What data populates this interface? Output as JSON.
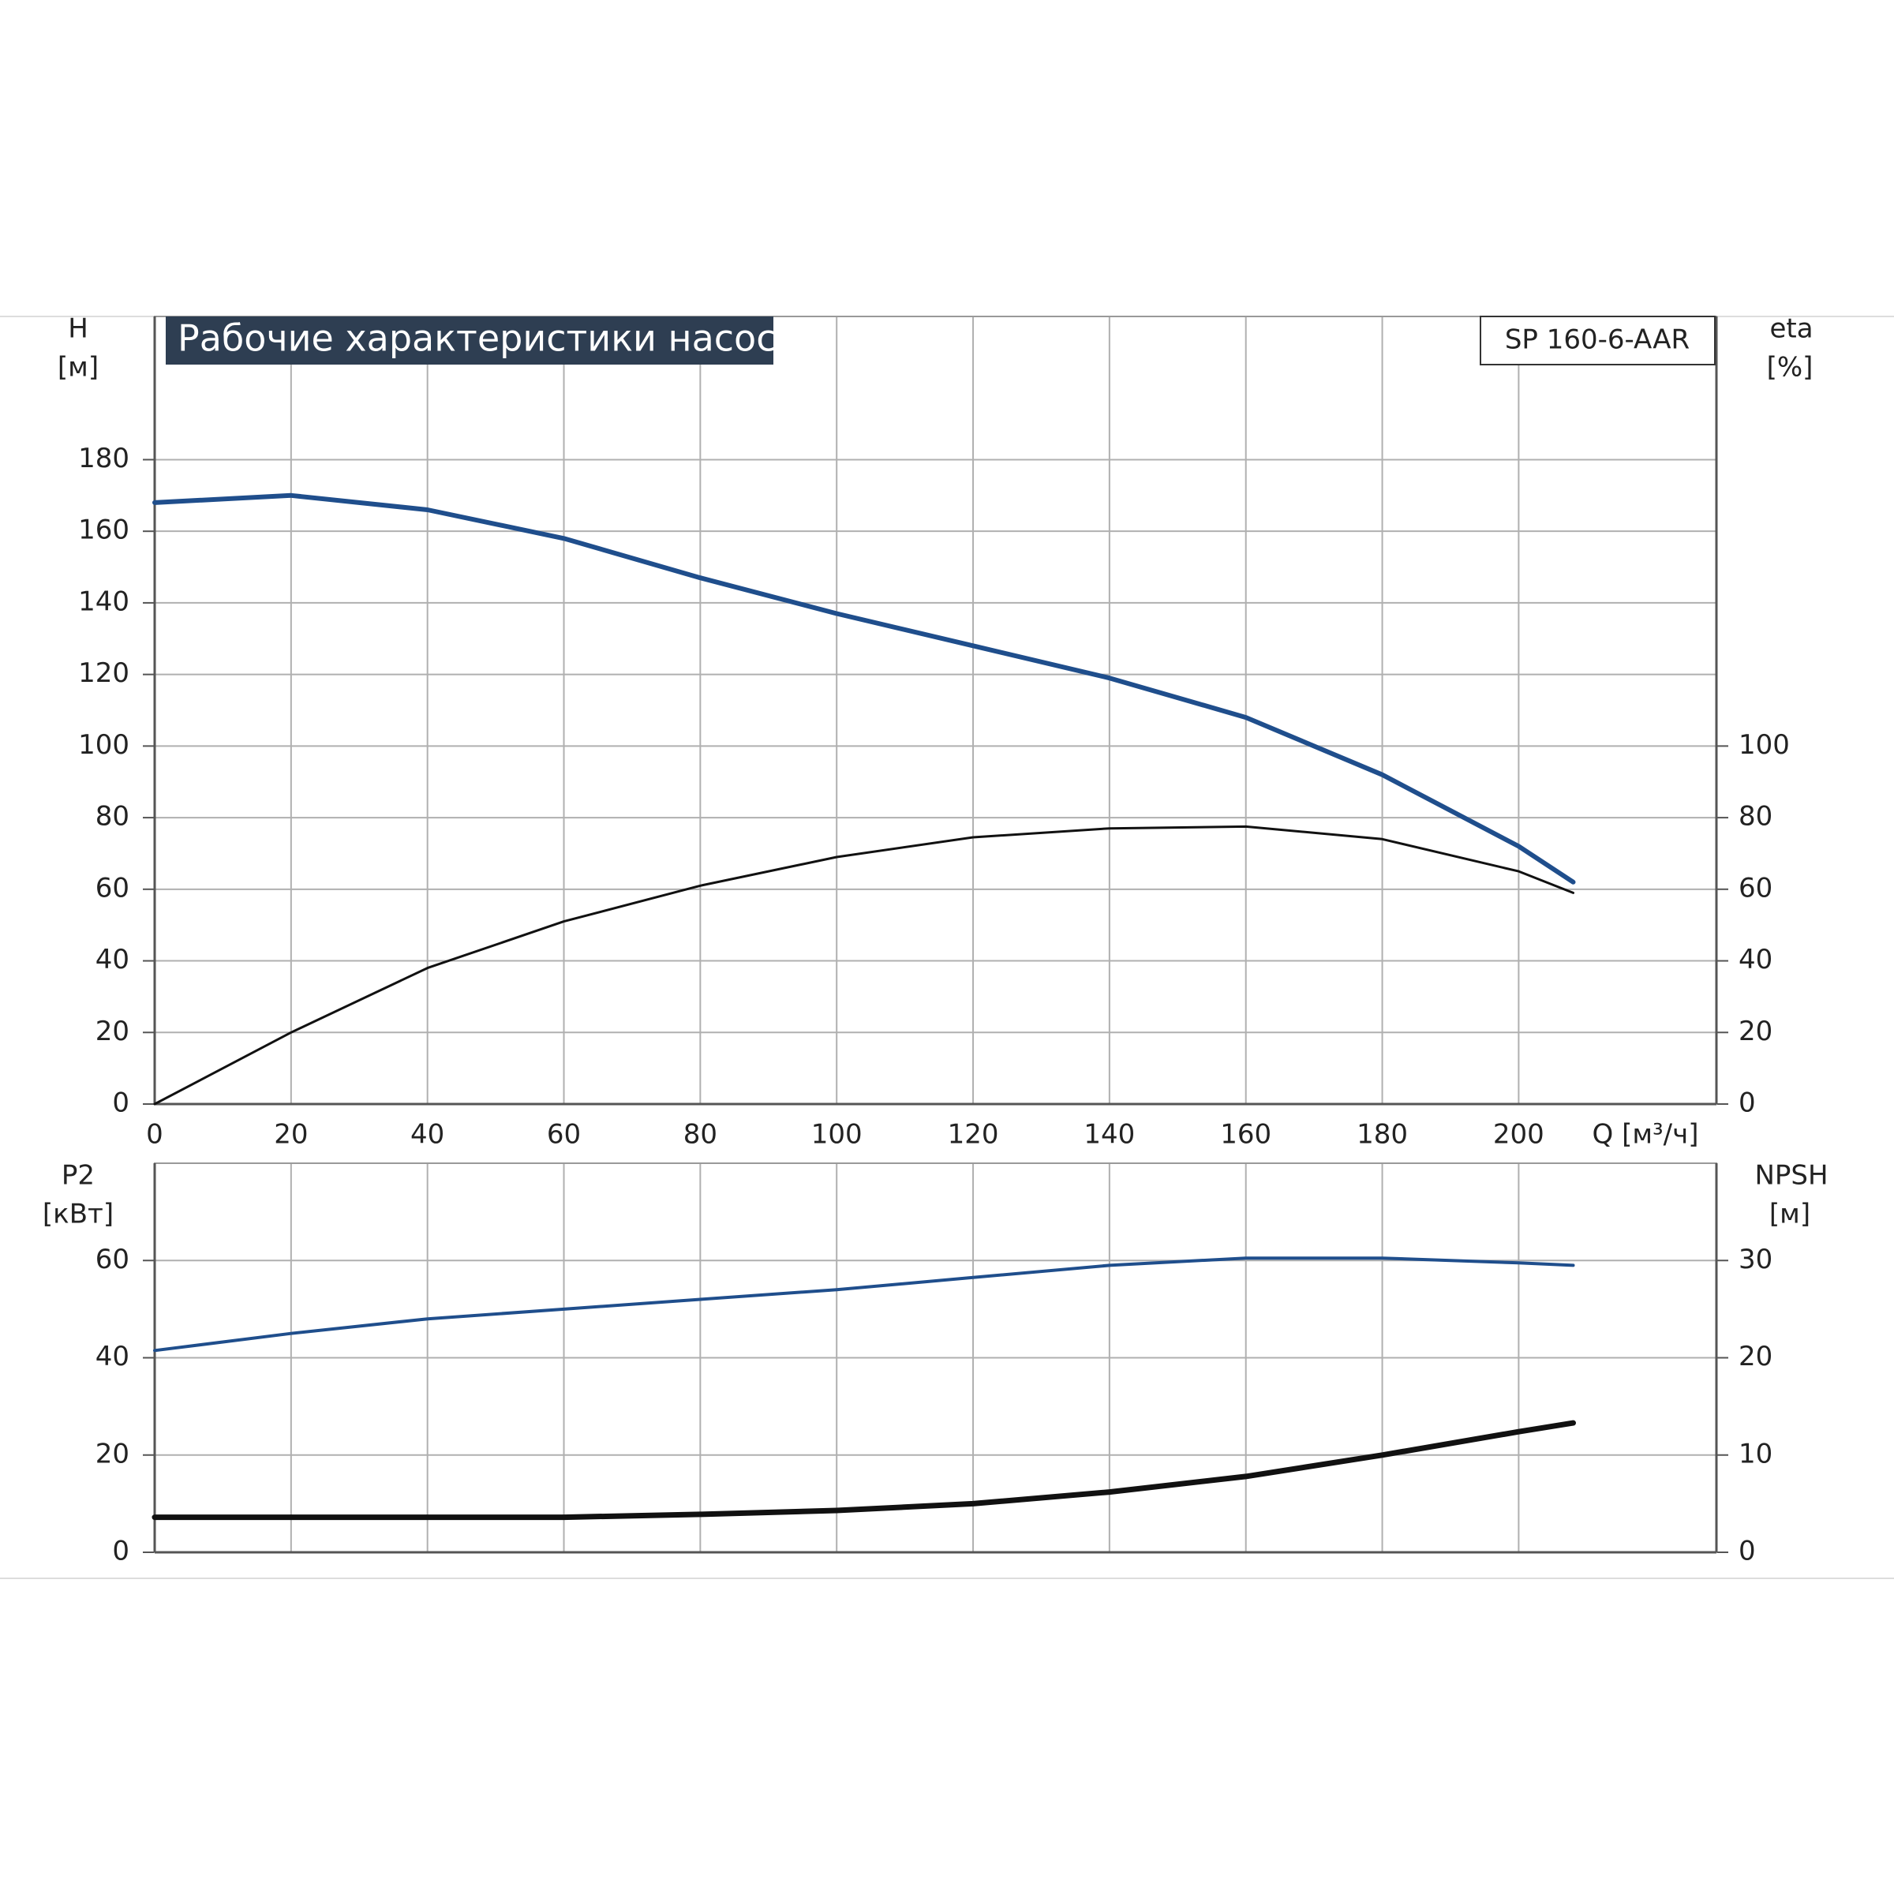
{
  "chart_data": [
    {
      "type": "line",
      "title": "Рабочие характеристики насоса",
      "annotation": "SP 160-6-AAR",
      "xlabel": "Q [м³/ч]",
      "ylabel": "H",
      "yunit": "[м]",
      "y2label": "eta",
      "y2unit": "[%]",
      "x": [
        0,
        20,
        40,
        60,
        80,
        100,
        120,
        140,
        160,
        180,
        200,
        208
      ],
      "xlim": [
        0,
        229
      ],
      "xticks": [
        0,
        20,
        40,
        60,
        80,
        100,
        120,
        140,
        160,
        180,
        200
      ],
      "ylim": [
        0,
        220
      ],
      "yticks": [
        0,
        20,
        40,
        60,
        80,
        100,
        120,
        140,
        160,
        180
      ],
      "y2lim": [
        0,
        220
      ],
      "y2ticks": [
        0,
        20,
        40,
        60,
        80,
        100
      ],
      "grid": true,
      "series": [
        {
          "color": "#1f4e8c",
          "values": [
            168,
            170,
            166,
            158,
            147,
            137,
            128,
            119,
            108,
            92,
            72,
            62
          ]
        },
        {
          "color": "#111111",
          "axis": "y2",
          "values": [
            0,
            20,
            38,
            51,
            61,
            69,
            74.5,
            77,
            77.5,
            74,
            65,
            59
          ]
        }
      ]
    },
    {
      "type": "line",
      "ylabel": "P2",
      "yunit": "[кВт]",
      "y2label": "NPSH",
      "y2unit": "[м]",
      "x": [
        0,
        20,
        40,
        60,
        80,
        100,
        120,
        140,
        160,
        180,
        200,
        208
      ],
      "xlim": [
        0,
        229
      ],
      "ylim": [
        0,
        80
      ],
      "yticks": [
        0,
        20,
        40,
        60
      ],
      "y2lim": [
        0,
        40
      ],
      "y2ticks": [
        0,
        10,
        20,
        30
      ],
      "grid": true,
      "series": [
        {
          "color": "#1f4e8c",
          "values": [
            41.5,
            45,
            48,
            50,
            52,
            54,
            56.5,
            59,
            60.5,
            60.5,
            59.5,
            59
          ]
        },
        {
          "color": "#111111",
          "axis": "y2",
          "values": [
            3.6,
            3.6,
            3.6,
            3.6,
            3.9,
            4.3,
            5,
            6.2,
            7.8,
            10,
            12.4,
            13.3
          ]
        }
      ]
    }
  ]
}
